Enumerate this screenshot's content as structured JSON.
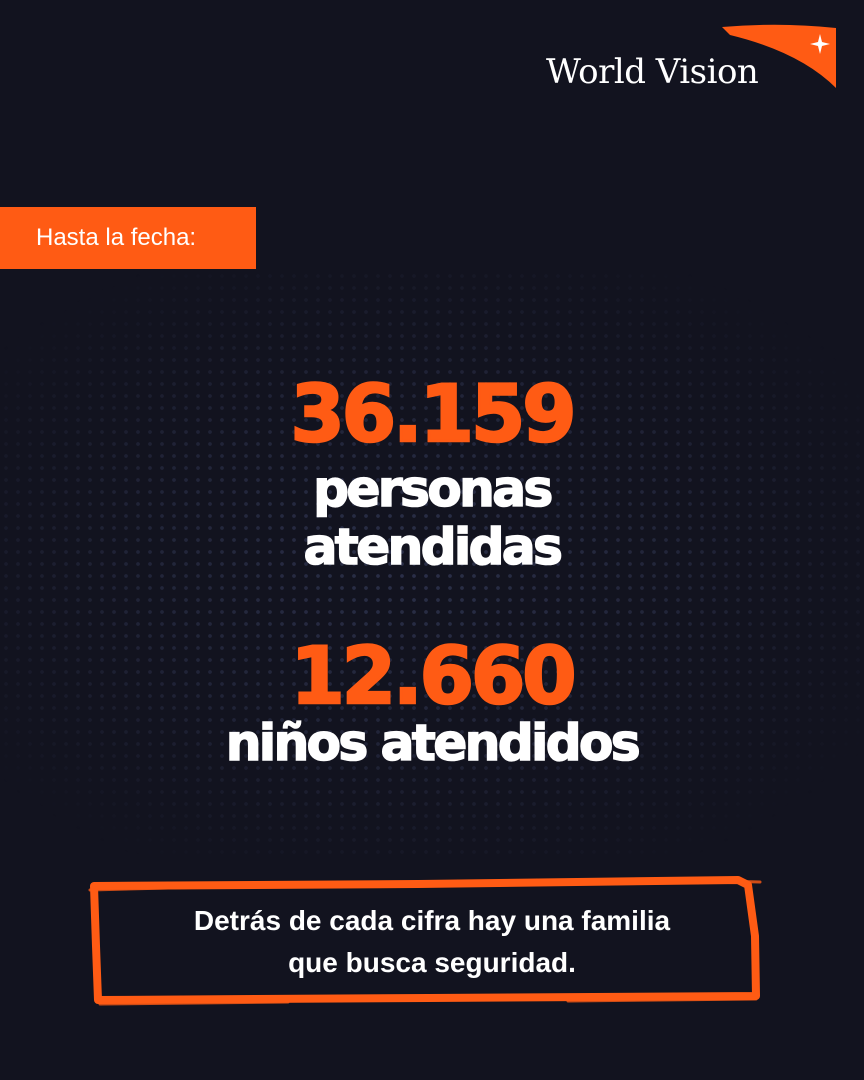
{
  "brand": {
    "name": "World Vision",
    "accent_color": "#ff5b14",
    "background_color": "#12131f"
  },
  "badge": {
    "label": "Hasta la fecha:"
  },
  "stats": [
    {
      "number": "36.159",
      "caption_lines": [
        "personas",
        "atendidas"
      ]
    },
    {
      "number": "12.660",
      "caption_lines": [
        "niños atendidos"
      ]
    }
  ],
  "tagline": {
    "lines": [
      "Detrás de cada cifra hay una familia",
      "que busca seguridad."
    ]
  },
  "icons": {
    "logo_mark": "orange-ribbon-with-star-icon"
  }
}
